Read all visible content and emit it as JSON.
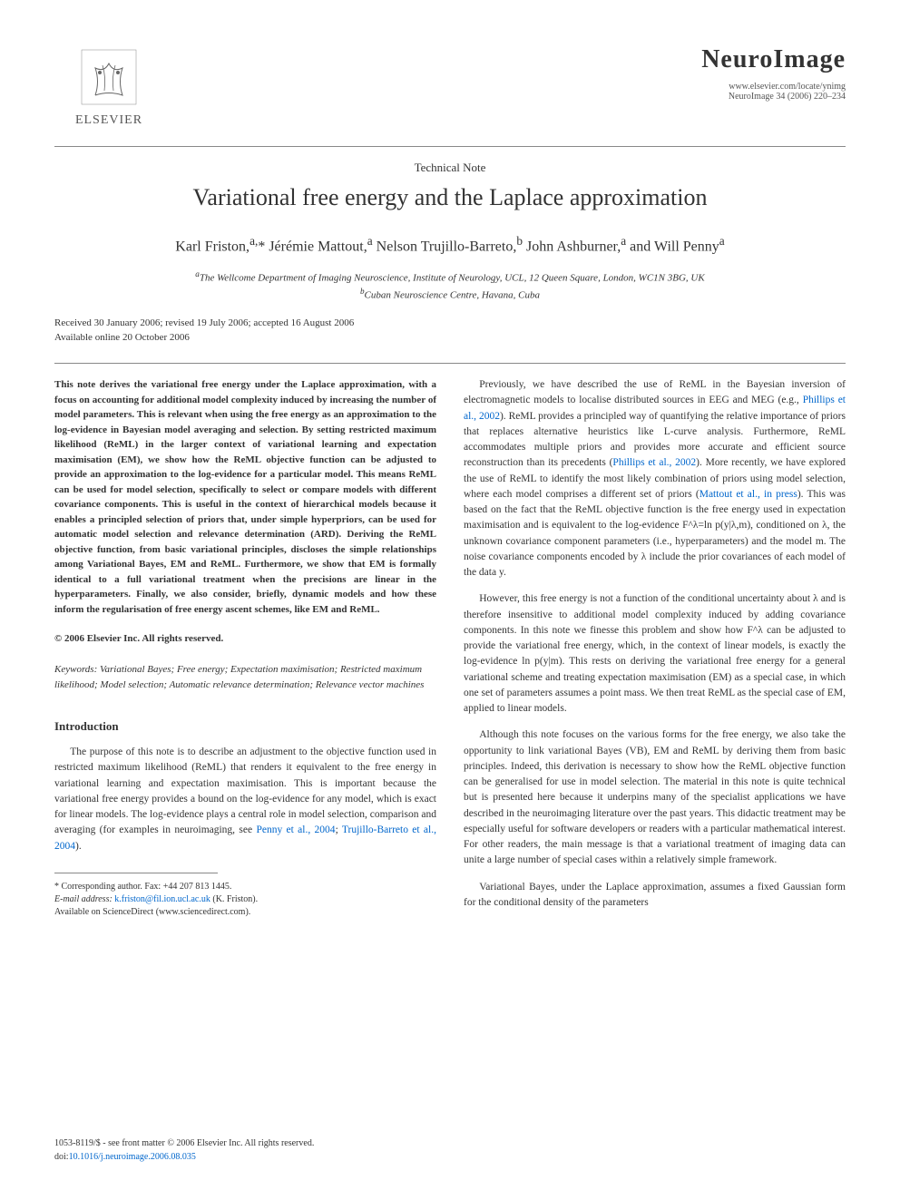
{
  "publisher": {
    "name": "ELSEVIER"
  },
  "journal": {
    "title": "NeuroImage",
    "url": "www.elsevier.com/locate/ynimg",
    "citation": "NeuroImage 34 (2006) 220–234"
  },
  "article": {
    "section_type": "Technical Note",
    "title": "Variational free energy and the Laplace approximation",
    "authors_html": "Karl Friston,<sup>a,</sup>* Jérémie Mattout,<sup>a</sup> Nelson Trujillo-Barreto,<sup>b</sup> John Ashburner,<sup>a</sup> and Will Penny<sup>a</sup>",
    "affiliations": {
      "a": "The Wellcome Department of Imaging Neuroscience, Institute of Neurology, UCL, 12 Queen Square, London, WC1N 3BG, UK",
      "b": "Cuban Neuroscience Centre, Havana, Cuba"
    },
    "dates": {
      "received": "Received 30 January 2006; revised 19 July 2006; accepted 16 August 2006",
      "online": "Available online 20 October 2006"
    }
  },
  "abstract": "This note derives the variational free energy under the Laplace approximation, with a focus on accounting for additional model complexity induced by increasing the number of model parameters. This is relevant when using the free energy as an approximation to the log-evidence in Bayesian model averaging and selection. By setting restricted maximum likelihood (ReML) in the larger context of variational learning and expectation maximisation (EM), we show how the ReML objective function can be adjusted to provide an approximation to the log-evidence for a particular model. This means ReML can be used for model selection, specifically to select or compare models with different covariance components. This is useful in the context of hierarchical models because it enables a principled selection of priors that, under simple hyperpriors, can be used for automatic model selection and relevance determination (ARD). Deriving the ReML objective function, from basic variational principles, discloses the simple relationships among Variational Bayes, EM and ReML. Furthermore, we show that EM is formally identical to a full variational treatment when the precisions are linear in the hyperparameters. Finally, we also consider, briefly, dynamic models and how these inform the regularisation of free energy ascent schemes, like EM and ReML.",
  "copyright": "© 2006 Elsevier Inc. All rights reserved.",
  "keywords_label": "Keywords:",
  "keywords": "Variational Bayes; Free energy; Expectation maximisation; Restricted maximum likelihood; Model selection; Automatic relevance determination; Relevance vector machines",
  "body": {
    "intro_heading": "Introduction",
    "intro_p1": "The purpose of this note is to describe an adjustment to the objective function used in restricted maximum likelihood (ReML) that renders it equivalent to the free energy in variational learning and expectation maximisation. This is important because the variational free energy provides a bound on the log-evidence for any model, which is exact for linear models. The log-evidence plays a central role in model selection, comparison and averaging (for examples in neuroimaging, see ",
    "intro_p1_link1": "Penny et al., 2004",
    "intro_p1_mid": "; ",
    "intro_p1_link2": "Trujillo-Barreto et al., 2004",
    "intro_p1_end": ").",
    "col2_p1_a": "Previously, we have described the use of ReML in the Bayesian inversion of electromagnetic models to localise distributed sources in EEG and MEG (e.g., ",
    "col2_p1_link1": "Phillips et al., 2002",
    "col2_p1_b": "). ReML provides a principled way of quantifying the relative importance of priors that replaces alternative heuristics like L-curve analysis. Furthermore, ReML accommodates multiple priors and provides more accurate and efficient source reconstruction than its precedents (",
    "col2_p1_link2": "Phillips et al., 2002",
    "col2_p1_c": "). More recently, we have explored the use of ReML to identify the most likely combination of priors using model selection, where each model comprises a different set of priors (",
    "col2_p1_link3": "Mattout et al., in press",
    "col2_p1_d": "). This was based on the fact that the ReML objective function is the free energy used in expectation maximisation and is equivalent to the log-evidence F^λ=ln p(y|λ,m), conditioned on λ, the unknown covariance component parameters (i.e., hyperparameters) and the model m. The noise covariance components encoded by λ include the prior covariances of each model of the data y.",
    "col2_p2": "However, this free energy is not a function of the conditional uncertainty about λ and is therefore insensitive to additional model complexity induced by adding covariance components. In this note we finesse this problem and show how F^λ can be adjusted to provide the variational free energy, which, in the context of linear models, is exactly the log-evidence ln p(y|m). This rests on deriving the variational free energy for a general variational scheme and treating expectation maximisation (EM) as a special case, in which one set of parameters assumes a point mass. We then treat ReML as the special case of EM, applied to linear models.",
    "col2_p3": "Although this note focuses on the various forms for the free energy, we also take the opportunity to link variational Bayes (VB), EM and ReML by deriving them from basic principles. Indeed, this derivation is necessary to show how the ReML objective function can be generalised for use in model selection. The material in this note is quite technical but is presented here because it underpins many of the specialist applications we have described in the neuroimaging literature over the past years. This didactic treatment may be especially useful for software developers or readers with a particular mathematical interest. For other readers, the main message is that a variational treatment of imaging data can unite a large number of special cases within a relatively simple framework.",
    "col2_p4": "Variational Bayes, under the Laplace approximation, assumes a fixed Gaussian form for the conditional density of the parameters"
  },
  "footnote": {
    "corresponding": "* Corresponding author. Fax: +44 207 813 1445.",
    "email_label": "E-mail address:",
    "email": "k.friston@fil.ion.ucl.ac.uk",
    "email_suffix": "(K. Friston).",
    "available": "Available on ScienceDirect (www.sciencedirect.com)."
  },
  "page_footer": {
    "front_matter": "1053-8119/$ - see front matter © 2006 Elsevier Inc. All rights reserved.",
    "doi_label": "doi:",
    "doi": "10.1016/j.neuroimage.2006.08.035"
  }
}
